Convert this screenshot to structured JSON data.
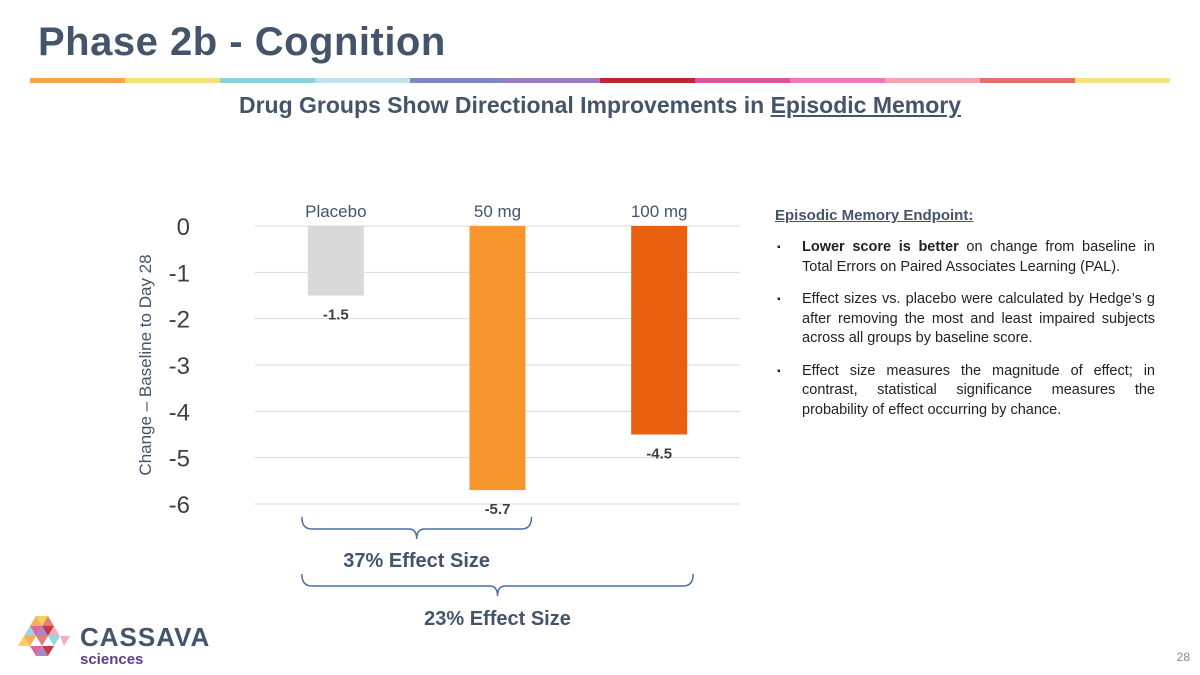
{
  "slide": {
    "title": "Phase 2b - Cognition",
    "subtitle_prefix": "Drug Groups Show Directional Improvements in ",
    "subtitle_emphasis": "Episodic Memory",
    "page_number": "28",
    "strip_colors": [
      "#f3a64a",
      "#f3e27a",
      "#8dd0e2",
      "#bfe3ee",
      "#7d88c4",
      "#9a7dc1",
      "#c0252d",
      "#d9569a",
      "#e87bb8",
      "#f0a8b5",
      "#e2706a",
      "#f6df86"
    ]
  },
  "chart_data": {
    "type": "bar",
    "categories": [
      "Placebo",
      "50 mg",
      "100 mg"
    ],
    "values": [
      -1.5,
      -5.7,
      -4.5
    ],
    "value_labels": [
      "-1.5",
      "-5.7",
      "-4.5"
    ],
    "colors": [
      "#d9d9d9",
      "#f7962f",
      "#e96011"
    ],
    "ylabel": "Change – Baseline to Day 28",
    "ylim": [
      -6,
      0
    ],
    "yticks": [
      0,
      -1,
      -2,
      -3,
      -4,
      -5,
      -6
    ],
    "ytick_labels": [
      "0",
      "-1",
      "-2",
      "-3",
      "-4",
      "-5",
      "-6"
    ],
    "grid": true,
    "annotations": [
      {
        "text": "37%  Effect Size",
        "from": "Placebo",
        "to": "50 mg"
      },
      {
        "text": "23%  Effect Size",
        "from": "Placebo",
        "to": "100 mg"
      }
    ]
  },
  "notes": {
    "heading": "Episodic Memory Endpoint:",
    "bullets": [
      {
        "bold": "Lower score is better",
        "text": " on change from baseline in Total Errors on Paired Associates Learning (PAL)."
      },
      {
        "bold": "",
        "text": "Effect sizes vs. placebo were calculated by Hedge’s g after removing the most and least impaired subjects across all groups by baseline score."
      },
      {
        "bold": "",
        "text": "Effect size measures the magnitude of effect; in contrast, statistical significance measures the probability of effect occurring by chance."
      }
    ],
    "bullet_glyph": "▪"
  },
  "logo": {
    "name_primary": "CASSAVA",
    "name_secondary": "sciences",
    "triangle_colors": [
      "#f7c94a",
      "#f3a64a",
      "#e2706a",
      "#8dd0e2",
      "#d9569a",
      "#c0252d",
      "#9a7dc1",
      "#f0a8b5"
    ]
  }
}
